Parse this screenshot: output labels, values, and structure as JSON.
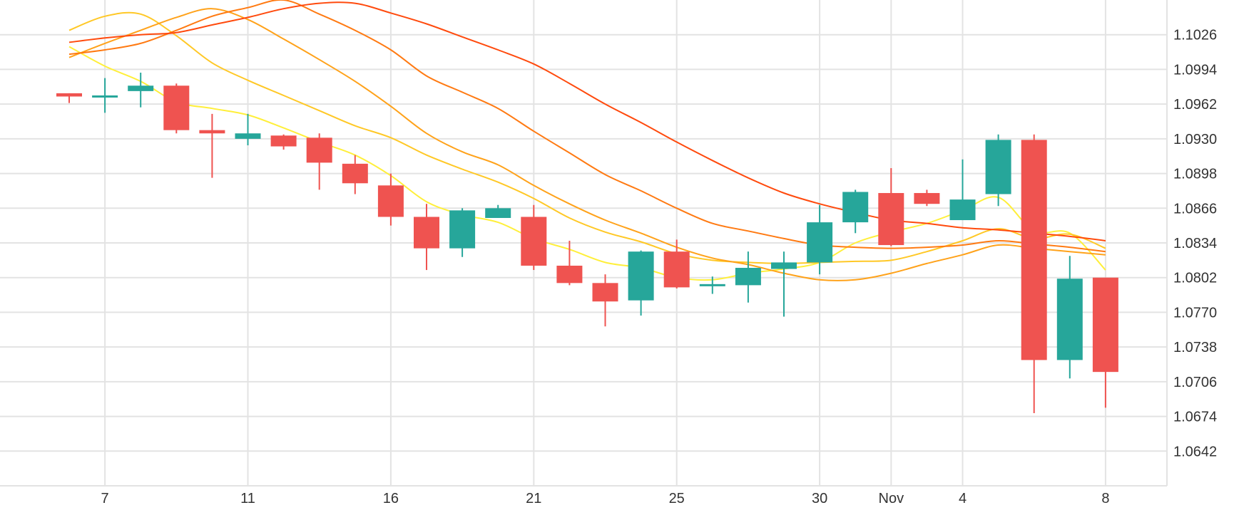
{
  "chart_data": {
    "type": "candlestick",
    "title": "",
    "xlabel": "",
    "ylabel": "",
    "ylim": [
      1.061,
      1.1058
    ],
    "grid": true,
    "x_ticks": [
      {
        "label": "7",
        "index": 1
      },
      {
        "label": "11",
        "index": 5
      },
      {
        "label": "16",
        "index": 9
      },
      {
        "label": "21",
        "index": 13
      },
      {
        "label": "25",
        "index": 17
      },
      {
        "label": "30",
        "index": 21
      },
      {
        "label": "Nov",
        "index": 23
      },
      {
        "label": "4",
        "index": 25
      },
      {
        "label": "8",
        "index": 29
      }
    ],
    "y_ticks": [
      "1.1026",
      "1.0994",
      "1.0962",
      "1.0930",
      "1.0898",
      "1.0866",
      "1.0834",
      "1.0802",
      "1.0770",
      "1.0738",
      "1.0706",
      "1.0674",
      "1.0642"
    ],
    "candles": [
      {
        "o": 1.0972,
        "h": 1.0972,
        "l": 1.0963,
        "c": 1.0969
      },
      {
        "o": 1.097,
        "h": 1.0986,
        "l": 1.0954,
        "c": 1.097
      },
      {
        "o": 1.0974,
        "h": 1.0991,
        "l": 1.0959,
        "c": 1.0979
      },
      {
        "o": 1.0979,
        "h": 1.0981,
        "l": 1.0935,
        "c": 1.0938
      },
      {
        "o": 1.0938,
        "h": 1.0953,
        "l": 1.0894,
        "c": 1.0935
      },
      {
        "o": 1.093,
        "h": 1.0953,
        "l": 1.0924,
        "c": 1.0935
      },
      {
        "o": 1.0933,
        "h": 1.0934,
        "l": 1.092,
        "c": 1.0923
      },
      {
        "o": 1.0931,
        "h": 1.0935,
        "l": 1.0883,
        "c": 1.0908
      },
      {
        "o": 1.0907,
        "h": 1.0915,
        "l": 1.0879,
        "c": 1.0889
      },
      {
        "o": 1.0887,
        "h": 1.0898,
        "l": 1.085,
        "c": 1.0858
      },
      {
        "o": 1.0858,
        "h": 1.087,
        "l": 1.0809,
        "c": 1.0829
      },
      {
        "o": 1.0829,
        "h": 1.0866,
        "l": 1.0821,
        "c": 1.0864
      },
      {
        "o": 1.0857,
        "h": 1.0869,
        "l": 1.0857,
        "c": 1.0866
      },
      {
        "o": 1.0858,
        "h": 1.0869,
        "l": 1.0809,
        "c": 1.0813
      },
      {
        "o": 1.0813,
        "h": 1.0836,
        "l": 1.0795,
        "c": 1.0797
      },
      {
        "o": 1.0797,
        "h": 1.0805,
        "l": 1.0757,
        "c": 1.078
      },
      {
        "o": 1.0781,
        "h": 1.0827,
        "l": 1.0767,
        "c": 1.0826
      },
      {
        "o": 1.0826,
        "h": 1.0837,
        "l": 1.0792,
        "c": 1.0793
      },
      {
        "o": 1.0795,
        "h": 1.0803,
        "l": 1.0787,
        "c": 1.0796
      },
      {
        "o": 1.0795,
        "h": 1.0826,
        "l": 1.0779,
        "c": 1.0811
      },
      {
        "o": 1.081,
        "h": 1.0826,
        "l": 1.0766,
        "c": 1.0816
      },
      {
        "o": 1.0816,
        "h": 1.0869,
        "l": 1.0805,
        "c": 1.0853
      },
      {
        "o": 1.0853,
        "h": 1.0883,
        "l": 1.0843,
        "c": 1.0881
      },
      {
        "o": 1.088,
        "h": 1.0903,
        "l": 1.0831,
        "c": 1.0832
      },
      {
        "o": 1.088,
        "h": 1.0883,
        "l": 1.0868,
        "c": 1.087
      },
      {
        "o": 1.0855,
        "h": 1.0911,
        "l": 1.0855,
        "c": 1.0874
      },
      {
        "o": 1.0879,
        "h": 1.0934,
        "l": 1.0868,
        "c": 1.0929
      },
      {
        "o": 1.0929,
        "h": 1.0934,
        "l": 1.0677,
        "c": 1.0726
      },
      {
        "o": 1.0726,
        "h": 1.0822,
        "l": 1.0709,
        "c": 1.0801
      },
      {
        "o": 1.0802,
        "h": 1.0802,
        "l": 1.0682,
        "c": 1.0715
      }
    ],
    "moving_averages": [
      {
        "color": "#ffef3a",
        "values": [
          [
            0,
            1.1015
          ],
          [
            1,
            1.0997
          ],
          [
            2,
            1.0983
          ],
          [
            3,
            1.0964
          ],
          [
            4,
            1.0958
          ],
          [
            5,
            1.0952
          ],
          [
            6,
            1.094
          ],
          [
            7,
            1.0927
          ],
          [
            8,
            1.0915
          ],
          [
            9,
            1.0896
          ],
          [
            10,
            1.0872
          ],
          [
            11,
            1.086
          ],
          [
            12,
            1.0853
          ],
          [
            13,
            1.0838
          ],
          [
            14,
            1.0828
          ],
          [
            15,
            1.0816
          ],
          [
            16,
            1.0811
          ],
          [
            17,
            1.0802
          ],
          [
            18,
            1.08
          ],
          [
            19,
            1.0806
          ],
          [
            20,
            1.081
          ],
          [
            21,
            1.0816
          ],
          [
            22,
            1.0834
          ],
          [
            23,
            1.0844
          ],
          [
            24,
            1.0852
          ],
          [
            25,
            1.0864
          ],
          [
            26,
            1.0876
          ],
          [
            27,
            1.0845
          ],
          [
            28,
            1.0843
          ],
          [
            29,
            1.0809
          ]
        ]
      },
      {
        "color": "#ffc826",
        "values": [
          [
            0,
            1.103
          ],
          [
            1,
            1.1043
          ],
          [
            2,
            1.1045
          ],
          [
            3,
            1.1025
          ],
          [
            4,
            1.1
          ],
          [
            5,
            1.0984
          ],
          [
            6,
            1.097
          ],
          [
            7,
            1.0956
          ],
          [
            8,
            1.0942
          ],
          [
            9,
            1.0931
          ],
          [
            10,
            1.0915
          ],
          [
            11,
            1.0902
          ],
          [
            12,
            1.089
          ],
          [
            13,
            1.0875
          ],
          [
            14,
            1.0857
          ],
          [
            15,
            1.0844
          ],
          [
            16,
            1.0835
          ],
          [
            17,
            1.0824
          ],
          [
            18,
            1.0818
          ],
          [
            19,
            1.0816
          ],
          [
            20,
            1.0815
          ],
          [
            21,
            1.0816
          ],
          [
            22,
            1.0817
          ],
          [
            23,
            1.0818
          ],
          [
            24,
            1.0826
          ],
          [
            25,
            1.0836
          ],
          [
            26,
            1.0847
          ],
          [
            27,
            1.0838
          ],
          [
            28,
            1.0842
          ],
          [
            29,
            1.0829
          ]
        ]
      },
      {
        "color": "#ffa21a",
        "values": [
          [
            0,
            1.1005
          ],
          [
            1,
            1.1018
          ],
          [
            2,
            1.103
          ],
          [
            3,
            1.1042
          ],
          [
            4,
            1.105
          ],
          [
            5,
            1.104
          ],
          [
            6,
            1.1022
          ],
          [
            7,
            1.1003
          ],
          [
            8,
            1.0983
          ],
          [
            9,
            1.096
          ],
          [
            10,
            1.0935
          ],
          [
            11,
            1.0918
          ],
          [
            12,
            1.0906
          ],
          [
            13,
            1.0887
          ],
          [
            14,
            1.087
          ],
          [
            15,
            1.0855
          ],
          [
            16,
            1.0843
          ],
          [
            17,
            1.083
          ],
          [
            18,
            1.082
          ],
          [
            19,
            1.0814
          ],
          [
            20,
            1.0806
          ],
          [
            21,
            1.08
          ],
          [
            22,
            1.08
          ],
          [
            23,
            1.0806
          ],
          [
            24,
            1.0815
          ],
          [
            25,
            1.0823
          ],
          [
            26,
            1.0832
          ],
          [
            27,
            1.0829
          ],
          [
            28,
            1.0826
          ],
          [
            29,
            1.0823
          ]
        ]
      },
      {
        "color": "#ff7a12",
        "values": [
          [
            0,
            1.1008
          ],
          [
            1,
            1.1012
          ],
          [
            2,
            1.1018
          ],
          [
            3,
            1.103
          ],
          [
            4,
            1.1043
          ],
          [
            5,
            1.1051
          ],
          [
            6,
            1.1058
          ],
          [
            7,
            1.1045
          ],
          [
            8,
            1.103
          ],
          [
            9,
            1.1012
          ],
          [
            10,
            1.0988
          ],
          [
            11,
            1.0973
          ],
          [
            12,
            1.0958
          ],
          [
            13,
            1.0937
          ],
          [
            14,
            1.0917
          ],
          [
            15,
            1.0897
          ],
          [
            16,
            1.0882
          ],
          [
            17,
            1.0866
          ],
          [
            18,
            1.0852
          ],
          [
            19,
            1.0845
          ],
          [
            20,
            1.0838
          ],
          [
            21,
            1.0832
          ],
          [
            22,
            1.083
          ],
          [
            23,
            1.0829
          ],
          [
            24,
            1.083
          ],
          [
            25,
            1.0832
          ],
          [
            26,
            1.0836
          ],
          [
            27,
            1.0833
          ],
          [
            28,
            1.083
          ],
          [
            29,
            1.0826
          ]
        ]
      },
      {
        "color": "#ff4a0d",
        "values": [
          [
            0,
            1.1019
          ],
          [
            1,
            1.1023
          ],
          [
            2,
            1.1026
          ],
          [
            3,
            1.1028
          ],
          [
            4,
            1.1035
          ],
          [
            5,
            1.1042
          ],
          [
            6,
            1.105
          ],
          [
            7,
            1.1055
          ],
          [
            8,
            1.1055
          ],
          [
            9,
            1.1046
          ],
          [
            10,
            1.1036
          ],
          [
            11,
            1.1024
          ],
          [
            12,
            1.1012
          ],
          [
            13,
            1.0999
          ],
          [
            14,
            1.0981
          ],
          [
            15,
            1.0962
          ],
          [
            16,
            1.0945
          ],
          [
            17,
            1.0927
          ],
          [
            18,
            1.091
          ],
          [
            19,
            1.0894
          ],
          [
            20,
            1.088
          ],
          [
            21,
            1.087
          ],
          [
            22,
            1.0862
          ],
          [
            23,
            1.0855
          ],
          [
            24,
            1.0852
          ],
          [
            25,
            1.0848
          ],
          [
            26,
            1.0846
          ],
          [
            27,
            1.0843
          ],
          [
            28,
            1.084
          ],
          [
            29,
            1.0836
          ]
        ]
      }
    ],
    "colors": {
      "up": "#26a69a",
      "down": "#ef5350",
      "grid": "#e3e3e3",
      "axis_text": "#333333"
    }
  }
}
